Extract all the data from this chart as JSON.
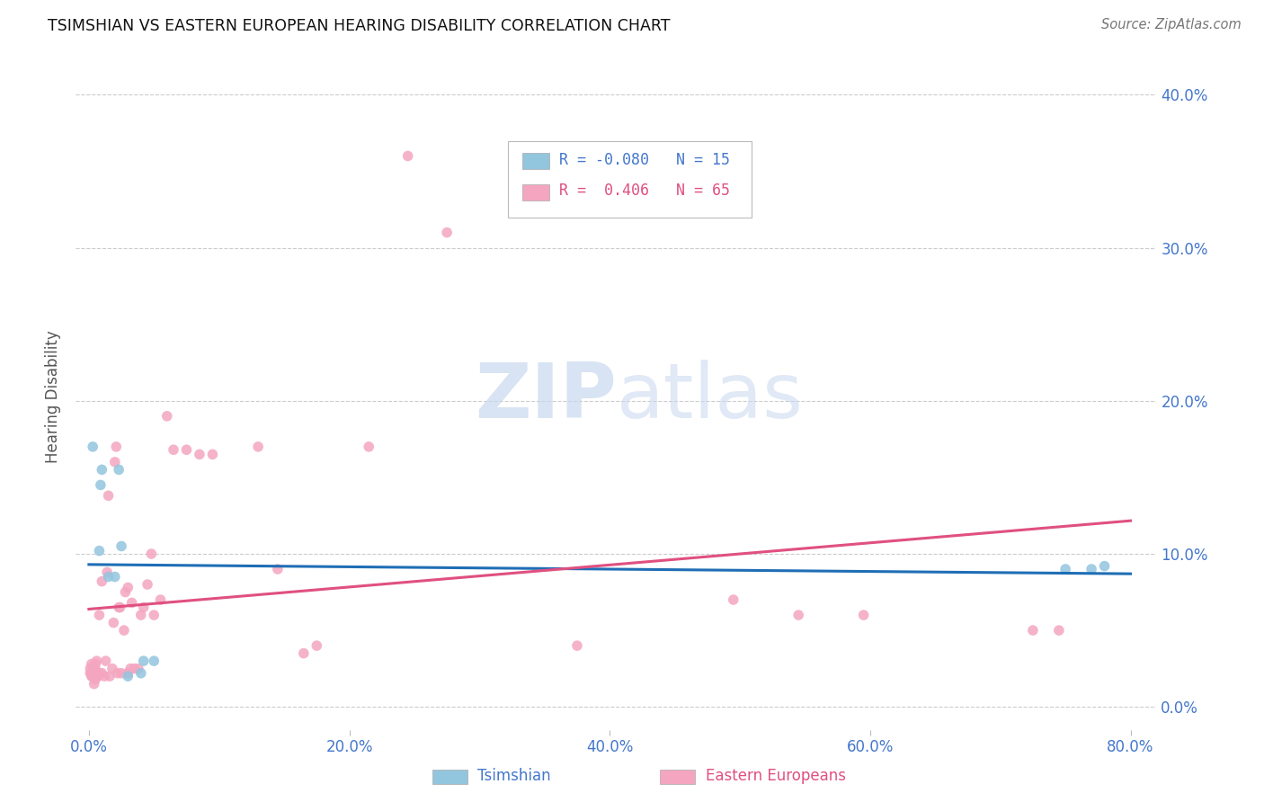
{
  "title": "TSIMSHIAN VS EASTERN EUROPEAN HEARING DISABILITY CORRELATION CHART",
  "source": "Source: ZipAtlas.com",
  "ylabel": "Hearing Disability",
  "color_blue": "#92c5de",
  "color_pink": "#f4a6c0",
  "line_color_blue": "#1f6eb5",
  "line_color_pink": "#e05080",
  "legend_r1": "-0.080",
  "legend_n1": "15",
  "legend_r2": "0.406",
  "legend_n2": "65",
  "blue_x": [
    0.3,
    0.8,
    0.9,
    1.0,
    1.5,
    2.0,
    2.3,
    2.5,
    3.0,
    4.0,
    4.2,
    5.0,
    75.0,
    77.0,
    78.0
  ],
  "blue_y": [
    17.0,
    10.2,
    14.5,
    15.5,
    8.5,
    8.5,
    15.5,
    10.5,
    2.0,
    2.2,
    3.0,
    3.0,
    9.0,
    9.0,
    9.2
  ],
  "pink_x": [
    0.1,
    0.1,
    0.2,
    0.2,
    0.2,
    0.3,
    0.3,
    0.4,
    0.4,
    0.5,
    0.5,
    0.5,
    0.5,
    0.6,
    0.6,
    0.7,
    0.8,
    0.8,
    1.0,
    1.0,
    1.2,
    1.3,
    1.4,
    1.5,
    1.6,
    1.8,
    1.9,
    2.0,
    2.1,
    2.2,
    2.3,
    2.4,
    2.5,
    2.7,
    2.8,
    3.0,
    3.0,
    3.2,
    3.3,
    3.5,
    3.8,
    4.0,
    4.2,
    4.5,
    4.8,
    5.0,
    5.5,
    6.0,
    6.5,
    7.5,
    8.5,
    9.5,
    13.0,
    14.5,
    16.5,
    17.5,
    21.5,
    24.5,
    27.5,
    37.5,
    49.5,
    54.5,
    59.5,
    72.5,
    74.5
  ],
  "pink_y": [
    2.2,
    2.5,
    2.0,
    2.2,
    2.8,
    2.0,
    2.6,
    1.5,
    2.0,
    1.8,
    2.0,
    2.5,
    2.8,
    2.2,
    3.0,
    2.0,
    2.2,
    6.0,
    2.2,
    8.2,
    2.0,
    3.0,
    8.8,
    13.8,
    2.0,
    2.5,
    5.5,
    16.0,
    17.0,
    2.2,
    6.5,
    6.5,
    2.2,
    5.0,
    7.5,
    2.2,
    7.8,
    2.5,
    6.8,
    2.5,
    2.5,
    6.0,
    6.5,
    8.0,
    10.0,
    6.0,
    7.0,
    19.0,
    16.8,
    16.8,
    16.5,
    16.5,
    17.0,
    9.0,
    3.5,
    4.0,
    17.0,
    36.0,
    31.0,
    4.0,
    7.0,
    6.0,
    6.0,
    5.0,
    5.0
  ],
  "xlim": [
    -1.0,
    82.0
  ],
  "ylim": [
    -1.5,
    42.0
  ],
  "xticks": [
    0.0,
    20.0,
    40.0,
    60.0,
    80.0
  ],
  "yticks": [
    0.0,
    10.0,
    20.0,
    30.0,
    40.0
  ],
  "xticklabels": [
    "0.0%",
    "20.0%",
    "40.0%",
    "60.0%",
    "80.0%"
  ],
  "yticklabels": [
    "0.0%",
    "10.0%",
    "20.0%",
    "30.0%",
    "40.0%"
  ],
  "grid_color": "#cccccc",
  "tick_color": "#4477cc",
  "background": "#ffffff"
}
